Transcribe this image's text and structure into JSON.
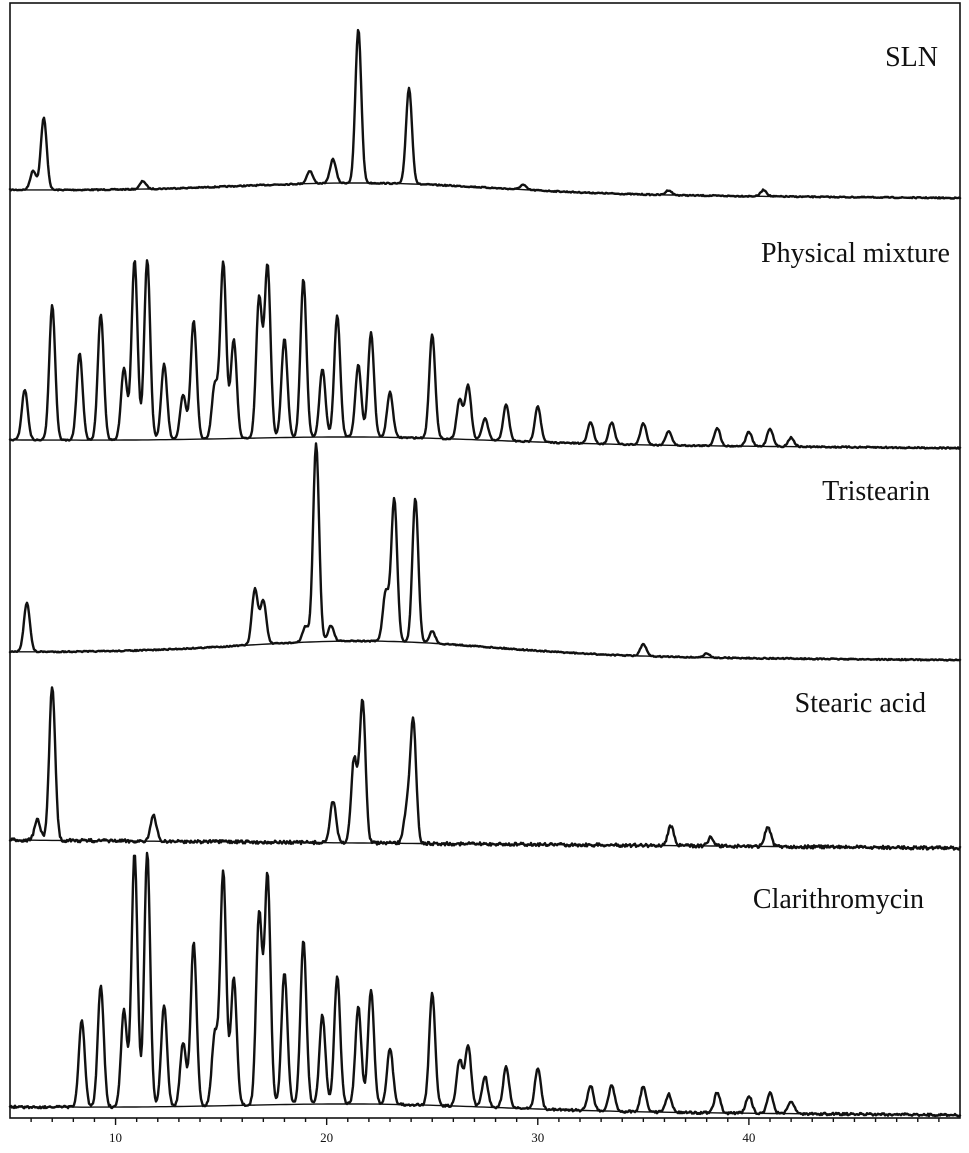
{
  "chart_data": {
    "type": "line",
    "title": "",
    "xlabel": "",
    "ylabel": "",
    "xlim": [
      5,
      50
    ],
    "x_ticks": [
      10,
      20,
      30,
      40
    ],
    "x_tick_labels": [
      "10",
      "20",
      "30",
      "40"
    ],
    "grid": false,
    "legend": "none",
    "series": [
      {
        "name": "SLN",
        "peaks": [
          {
            "x": 6.1,
            "h": 0.12
          },
          {
            "x": 6.6,
            "h": 0.45
          },
          {
            "x": 11.3,
            "h": 0.05
          },
          {
            "x": 19.2,
            "h": 0.08
          },
          {
            "x": 20.3,
            "h": 0.15
          },
          {
            "x": 21.5,
            "h": 0.96
          },
          {
            "x": 23.9,
            "h": 0.6
          },
          {
            "x": 29.3,
            "h": 0.03
          },
          {
            "x": 36.2,
            "h": 0.03
          },
          {
            "x": 40.7,
            "h": 0.04
          }
        ]
      },
      {
        "name": "Physical mixture",
        "peaks": [
          {
            "x": 5.7,
            "h": 0.28
          },
          {
            "x": 7.0,
            "h": 0.75
          },
          {
            "x": 8.3,
            "h": 0.48
          },
          {
            "x": 9.3,
            "h": 0.7
          },
          {
            "x": 10.4,
            "h": 0.4
          },
          {
            "x": 10.9,
            "h": 1.0
          },
          {
            "x": 11.5,
            "h": 1.0
          },
          {
            "x": 12.3,
            "h": 0.42
          },
          {
            "x": 13.2,
            "h": 0.25
          },
          {
            "x": 13.7,
            "h": 0.66
          },
          {
            "x": 14.7,
            "h": 0.3
          },
          {
            "x": 15.1,
            "h": 0.98
          },
          {
            "x": 15.6,
            "h": 0.55
          },
          {
            "x": 16.8,
            "h": 0.78
          },
          {
            "x": 17.2,
            "h": 0.96
          },
          {
            "x": 18.0,
            "h": 0.55
          },
          {
            "x": 18.9,
            "h": 0.88
          },
          {
            "x": 19.8,
            "h": 0.38
          },
          {
            "x": 20.5,
            "h": 0.68
          },
          {
            "x": 21.5,
            "h": 0.4
          },
          {
            "x": 22.1,
            "h": 0.58
          },
          {
            "x": 23.0,
            "h": 0.25
          },
          {
            "x": 25.0,
            "h": 0.58
          },
          {
            "x": 26.3,
            "h": 0.22
          },
          {
            "x": 26.7,
            "h": 0.3
          },
          {
            "x": 27.5,
            "h": 0.12
          },
          {
            "x": 28.5,
            "h": 0.2
          },
          {
            "x": 30.0,
            "h": 0.2
          },
          {
            "x": 32.5,
            "h": 0.12
          },
          {
            "x": 33.5,
            "h": 0.12
          },
          {
            "x": 35.0,
            "h": 0.12
          },
          {
            "x": 36.2,
            "h": 0.08
          },
          {
            "x": 38.5,
            "h": 0.1
          },
          {
            "x": 40.0,
            "h": 0.08
          },
          {
            "x": 41.0,
            "h": 0.1
          },
          {
            "x": 42.0,
            "h": 0.05
          }
        ]
      },
      {
        "name": "Tristearin",
        "peaks": [
          {
            "x": 5.8,
            "h": 0.25
          },
          {
            "x": 16.6,
            "h": 0.28
          },
          {
            "x": 17.0,
            "h": 0.22
          },
          {
            "x": 19.0,
            "h": 0.08
          },
          {
            "x": 19.5,
            "h": 1.0
          },
          {
            "x": 20.2,
            "h": 0.08
          },
          {
            "x": 22.8,
            "h": 0.25
          },
          {
            "x": 23.2,
            "h": 0.72
          },
          {
            "x": 24.2,
            "h": 0.73
          },
          {
            "x": 25.0,
            "h": 0.06
          },
          {
            "x": 35.0,
            "h": 0.06
          },
          {
            "x": 38.0,
            "h": 0.02
          }
        ]
      },
      {
        "name": "Stearic acid",
        "peaks": [
          {
            "x": 6.3,
            "h": 0.12
          },
          {
            "x": 7.0,
            "h": 0.92
          },
          {
            "x": 11.8,
            "h": 0.15
          },
          {
            "x": 20.3,
            "h": 0.25
          },
          {
            "x": 21.3,
            "h": 0.5
          },
          {
            "x": 21.7,
            "h": 0.85
          },
          {
            "x": 23.8,
            "h": 0.2
          },
          {
            "x": 24.1,
            "h": 0.72
          },
          {
            "x": 36.3,
            "h": 0.12
          },
          {
            "x": 38.2,
            "h": 0.05
          },
          {
            "x": 40.9,
            "h": 0.12
          }
        ]
      },
      {
        "name": "Clarithromycin",
        "peaks": [
          {
            "x": 8.4,
            "h": 0.34
          },
          {
            "x": 9.3,
            "h": 0.48
          },
          {
            "x": 10.4,
            "h": 0.38
          },
          {
            "x": 10.9,
            "h": 1.0
          },
          {
            "x": 11.5,
            "h": 1.0
          },
          {
            "x": 12.3,
            "h": 0.4
          },
          {
            "x": 13.2,
            "h": 0.25
          },
          {
            "x": 13.7,
            "h": 0.64
          },
          {
            "x": 14.7,
            "h": 0.28
          },
          {
            "x": 15.1,
            "h": 0.92
          },
          {
            "x": 15.6,
            "h": 0.5
          },
          {
            "x": 16.8,
            "h": 0.75
          },
          {
            "x": 17.2,
            "h": 0.9
          },
          {
            "x": 18.0,
            "h": 0.52
          },
          {
            "x": 18.9,
            "h": 0.64
          },
          {
            "x": 19.8,
            "h": 0.35
          },
          {
            "x": 20.5,
            "h": 0.5
          },
          {
            "x": 21.5,
            "h": 0.38
          },
          {
            "x": 22.1,
            "h": 0.45
          },
          {
            "x": 23.0,
            "h": 0.22
          },
          {
            "x": 25.0,
            "h": 0.44
          },
          {
            "x": 26.3,
            "h": 0.18
          },
          {
            "x": 26.7,
            "h": 0.24
          },
          {
            "x": 27.5,
            "h": 0.12
          },
          {
            "x": 28.5,
            "h": 0.16
          },
          {
            "x": 30.0,
            "h": 0.16
          },
          {
            "x": 32.5,
            "h": 0.1
          },
          {
            "x": 33.5,
            "h": 0.1
          },
          {
            "x": 35.0,
            "h": 0.1
          },
          {
            "x": 36.2,
            "h": 0.07
          },
          {
            "x": 38.5,
            "h": 0.08
          },
          {
            "x": 40.0,
            "h": 0.07
          },
          {
            "x": 41.0,
            "h": 0.08
          },
          {
            "x": 42.0,
            "h": 0.05
          }
        ]
      }
    ]
  }
}
